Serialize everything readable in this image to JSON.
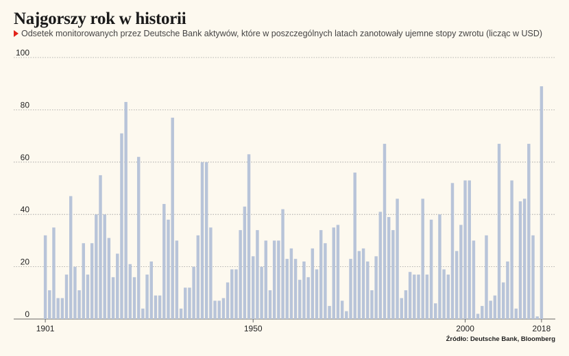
{
  "chart_data": {
    "type": "bar",
    "title": "Najgorszy rok w historii",
    "subtitle": "Odsetek monitorowanych przez Deutsche Bank aktywów, które w poszczególnych latach zanotowały ujemne stopy zwrotu (licząc w USD)",
    "source": "Źródło: Deutsche Bank, Bloomberg",
    "x_start": 1901,
    "x_end": 2018,
    "x_tick_labels": [
      "1901",
      "1950",
      "2000",
      "2018"
    ],
    "x_tick_values": [
      1901,
      1950,
      2000,
      2018
    ],
    "y_tick_labels": [
      "0",
      "20",
      "40",
      "60",
      "80",
      "100"
    ],
    "y_tick_values": [
      0,
      20,
      40,
      60,
      80,
      100
    ],
    "ylim": [
      0,
      100
    ],
    "grid": true,
    "bar_color": "#b8c4d9",
    "x": [
      1901,
      1902,
      1903,
      1904,
      1905,
      1906,
      1907,
      1908,
      1909,
      1910,
      1911,
      1912,
      1913,
      1914,
      1915,
      1916,
      1917,
      1918,
      1919,
      1920,
      1921,
      1922,
      1923,
      1924,
      1925,
      1926,
      1927,
      1928,
      1929,
      1930,
      1931,
      1932,
      1933,
      1934,
      1935,
      1936,
      1937,
      1938,
      1939,
      1940,
      1941,
      1942,
      1943,
      1944,
      1945,
      1946,
      1947,
      1948,
      1949,
      1950,
      1951,
      1952,
      1953,
      1954,
      1955,
      1956,
      1957,
      1958,
      1959,
      1960,
      1961,
      1962,
      1963,
      1964,
      1965,
      1966,
      1967,
      1968,
      1969,
      1970,
      1971,
      1972,
      1973,
      1974,
      1975,
      1976,
      1977,
      1978,
      1979,
      1980,
      1981,
      1982,
      1983,
      1984,
      1985,
      1986,
      1987,
      1988,
      1989,
      1990,
      1991,
      1992,
      1993,
      1994,
      1995,
      1996,
      1997,
      1998,
      1999,
      2000,
      2001,
      2002,
      2003,
      2004,
      2005,
      2006,
      2007,
      2008,
      2009,
      2010,
      2011,
      2012,
      2013,
      2014,
      2015,
      2016,
      2017,
      2018
    ],
    "values": [
      32,
      11,
      35,
      8,
      8,
      17,
      47,
      20,
      11,
      29,
      17,
      29,
      40,
      55,
      40,
      31,
      16,
      25,
      71,
      83,
      21,
      16,
      62,
      4,
      17,
      22,
      9,
      9,
      44,
      38,
      77,
      30,
      4,
      12,
      12,
      20,
      32,
      60,
      60,
      35,
      7,
      7,
      8,
      14,
      19,
      19,
      34,
      43,
      63,
      24,
      34,
      20,
      30,
      11,
      30,
      30,
      42,
      23,
      27,
      23,
      15,
      22,
      16,
      27,
      19,
      34,
      29,
      5,
      35,
      36,
      7,
      3,
      23,
      56,
      26,
      27,
      22,
      11,
      24,
      41,
      67,
      39,
      34,
      46,
      8,
      11,
      18,
      17,
      17,
      46,
      17,
      38,
      6,
      40,
      19,
      17,
      52,
      26,
      36,
      53,
      53,
      30,
      2,
      5,
      32,
      7,
      9,
      67,
      14,
      22,
      53,
      4,
      45,
      46,
      67,
      32,
      1,
      89
    ]
  }
}
